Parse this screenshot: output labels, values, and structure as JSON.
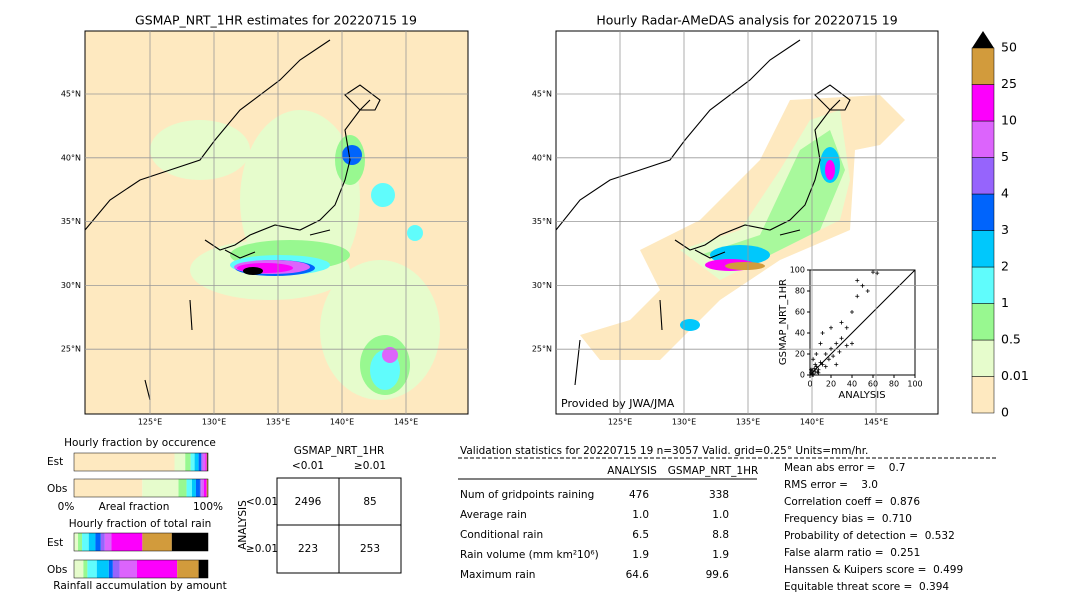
{
  "left_map": {
    "title": "GSMAP_NRT_1HR estimates for 20220715 19",
    "lat_labels": [
      "45°N",
      "40°N",
      "35°N",
      "30°N",
      "25°N"
    ],
    "lon_labels": [
      "125°E",
      "130°E",
      "135°E",
      "140°E",
      "145°E"
    ]
  },
  "right_map": {
    "title": "Hourly Radar-AMeDAS analysis for 20220715 19",
    "lat_labels": [
      "45°N",
      "40°N",
      "35°N",
      "30°N",
      "25°N"
    ],
    "lon_labels": [
      "125°E",
      "130°E",
      "135°E",
      "140°E",
      "145°E"
    ],
    "credit": "Provided by JWA/JMA"
  },
  "scatter": {
    "type": "scatter",
    "xlabel": "ANALYSIS",
    "ylabel": "GSMAP_NRT_1HR",
    "xlim": [
      0,
      100
    ],
    "ylim": [
      0,
      100
    ],
    "xticks": [
      0,
      20,
      40,
      60,
      80,
      100
    ],
    "yticks": [
      0,
      20,
      40,
      60,
      80,
      100
    ],
    "x": [
      1,
      2,
      3,
      4,
      5,
      6,
      8,
      10,
      12,
      15,
      18,
      20,
      22,
      25,
      28,
      30,
      35,
      40,
      45,
      50,
      55,
      60,
      64,
      2,
      5,
      8,
      10,
      15,
      3,
      6,
      12,
      30,
      40,
      45,
      20,
      25,
      35,
      3,
      1,
      7
    ],
    "y": [
      2,
      4,
      1,
      6,
      3,
      8,
      5,
      12,
      10,
      20,
      15,
      25,
      18,
      30,
      22,
      35,
      45,
      60,
      90,
      85,
      80,
      98,
      97,
      0,
      10,
      2,
      30,
      8,
      15,
      20,
      40,
      50,
      30,
      75,
      45,
      10,
      28,
      0,
      5,
      3
    ]
  },
  "colorbar": {
    "levels": [
      0,
      0.01,
      0.5,
      1,
      2,
      3,
      4,
      5,
      10,
      25,
      50
    ]
  },
  "colors": [
    "#fee9c0",
    "#e6fccc",
    "#98f890",
    "#60fcfc",
    "#00c8fc",
    "#0064fc",
    "#9664fc",
    "#dc64fc",
    "#fc00fc",
    "#d29b3c",
    "#000000"
  ],
  "occurrence": {
    "title": "Hourly fraction by occurence",
    "rows": [
      "Est",
      "Obs"
    ],
    "xlabel": "Areal fraction",
    "x_start": "0%",
    "x_end": "100%",
    "est": [
      0.75,
      0.08,
      0.04,
      0.03,
      0.03,
      0.02,
      0.01,
      0.02,
      0.01,
      0.005,
      0.005
    ],
    "obs": [
      0.51,
      0.27,
      0.06,
      0.04,
      0.03,
      0.03,
      0.01,
      0.02,
      0.02,
      0.01,
      0
    ]
  },
  "total": {
    "title": "Hourly fraction of total rain",
    "rows": [
      "Est",
      "Obs"
    ],
    "caption": "Rainfall accumulation by amount",
    "est": [
      0,
      0.03,
      0.03,
      0.05,
      0.05,
      0.04,
      0.03,
      0.05,
      0.23,
      0.22,
      0.27
    ],
    "obs": [
      0,
      0.07,
      0.03,
      0.07,
      0.09,
      0.03,
      0.05,
      0.13,
      0.3,
      0.16,
      0.07
    ]
  },
  "contingency": {
    "title": "GSMAP_NRT_1HR",
    "columns": [
      "<0.01",
      "≥0.01"
    ],
    "row_title": "ANALYSIS",
    "rows": [
      "<0.01",
      "≥0.01"
    ],
    "cells": [
      [
        "2496",
        "85"
      ],
      [
        "223",
        "253"
      ]
    ]
  },
  "validation": {
    "title": "Validation statistics for 20220715 19  n=3057 Valid. grid=0.25° Units=mm/hr.",
    "columns": [
      "ANALYSIS",
      "GSMAP_NRT_1HR"
    ],
    "rows": [
      {
        "name": "Num of gridpoints raining",
        "values": [
          "476",
          "338"
        ]
      },
      {
        "name": "Average rain",
        "values": [
          "1.0",
          "1.0"
        ]
      },
      {
        "name": "Conditional rain",
        "values": [
          "6.5",
          "8.8"
        ]
      },
      {
        "name": "Rain volume (mm km²10⁶)",
        "values": [
          "1.9",
          "1.9"
        ]
      },
      {
        "name": "Maximum rain",
        "values": [
          "64.6",
          "99.6"
        ]
      }
    ]
  },
  "scores": [
    "Mean abs error =    0.7",
    "RMS error =    3.0",
    "Correlation coeff =  0.876",
    "Frequency bias =  0.710",
    "Probability of detection =  0.532",
    "False alarm ratio =  0.251",
    "Hanssen & Kuipers score =  0.499",
    "Equitable threat score =  0.394"
  ]
}
